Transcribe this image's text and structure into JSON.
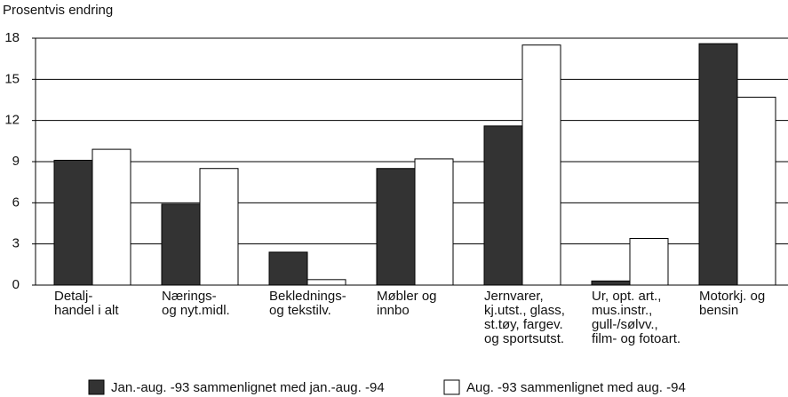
{
  "chart_data": {
    "type": "bar",
    "title": "Prosentvis endring",
    "categories": [
      "Detalj-\nhandel i alt",
      "Nærings-\nog nyt.midl.",
      "Beklednings-\nog tekstilv.",
      "Møbler og\ninnbo",
      "Jernvarer,\nkj.utst., glass,\nst.tøy, fargev.\nog sportsutst.",
      "Ur, opt. art.,\nmus.instr.,\ngull-/sølvv.,\nfilm- og fotoart.",
      "Motorkj. og\nbensin"
    ],
    "series": [
      {
        "name": "Jan.-aug. -93 sammenlignet med jan.-aug. -94",
        "color": "#333333",
        "values": [
          9.1,
          5.9,
          2.4,
          8.5,
          11.6,
          0.3,
          17.6
        ]
      },
      {
        "name": "Aug. -93 sammenlignet med aug. -94",
        "color": "#ffffff",
        "values": [
          9.9,
          8.5,
          0.4,
          9.2,
          17.5,
          3.4,
          13.7
        ]
      }
    ],
    "ylim": [
      0,
      18
    ],
    "yticks": [
      0,
      3,
      6,
      9,
      12,
      15,
      18
    ],
    "grid": true
  }
}
